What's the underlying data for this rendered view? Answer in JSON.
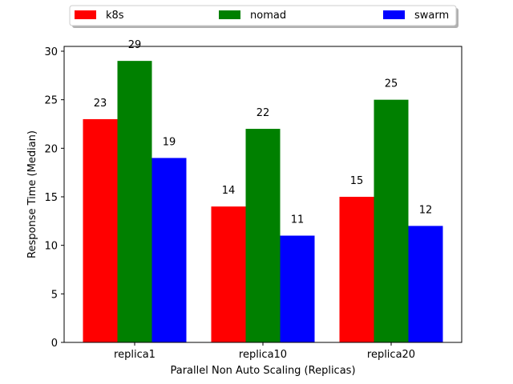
{
  "chart_data": {
    "type": "bar",
    "title": "",
    "xlabel": "Parallel Non Auto Scaling (Replicas)",
    "ylabel": "Response Time (Median)",
    "categories": [
      "replica1",
      "replica10",
      "replica20"
    ],
    "ylim": [
      0,
      30
    ],
    "yticks": [
      0,
      5,
      10,
      15,
      20,
      25,
      30
    ],
    "grid": false,
    "legend_position": "top",
    "series": [
      {
        "name": "k8s",
        "color": "#ff0000",
        "values": [
          23,
          14,
          15
        ]
      },
      {
        "name": "nomad",
        "color": "#008000",
        "values": [
          29,
          22,
          25
        ]
      },
      {
        "name": "swarm",
        "color": "#0000ff",
        "values": [
          19,
          11,
          12
        ]
      }
    ]
  }
}
